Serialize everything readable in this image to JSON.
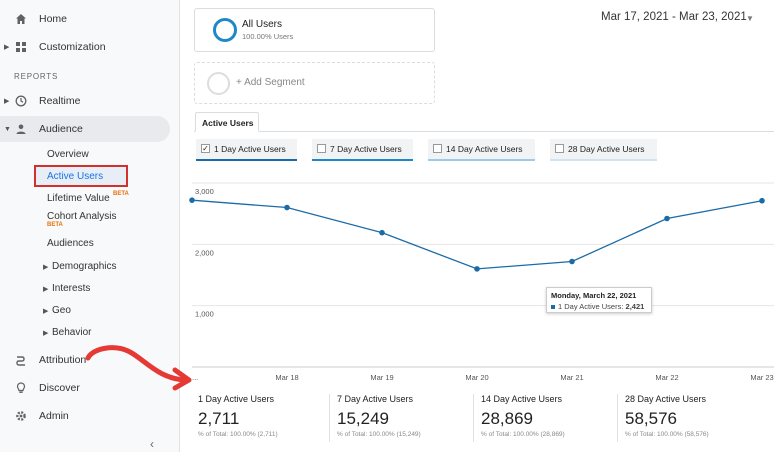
{
  "sidebar": {
    "home": "Home",
    "customization": "Customization",
    "reports_label": "REPORTS",
    "realtime": "Realtime",
    "audience": "Audience",
    "audience_items": {
      "overview": "Overview",
      "active_users": "Active Users",
      "lifetime_value": "Lifetime Value",
      "lifetime_beta": "BETA",
      "cohort_analysis": "Cohort Analysis",
      "cohort_beta": "BETA",
      "audiences": "Audiences",
      "demographics": "Demographics",
      "interests": "Interests",
      "geo": "Geo",
      "behavior": "Behavior"
    },
    "attribution": "Attribution",
    "discover": "Discover",
    "admin": "Admin",
    "collapse": "‹"
  },
  "segments": {
    "all_users": "All Users",
    "all_users_sub": "100.00% Users",
    "add_segment": "+ Add Segment"
  },
  "date_range": "Mar 17, 2021 - Mar 23, 2021",
  "tab": "Active Users",
  "toggles": [
    {
      "label": "1 Day Active Users",
      "checked": true,
      "color": "#1b6ba8"
    },
    {
      "label": "7 Day Active Users",
      "checked": false,
      "color": "#1e88c9"
    },
    {
      "label": "14 Day Active Users",
      "checked": false,
      "color": "#9ccbe8"
    },
    {
      "label": "28 Day Active Users",
      "checked": false,
      "color": "#cfe5f3"
    }
  ],
  "chart_data": {
    "type": "line",
    "x": [
      "...",
      "Mar 18",
      "Mar 19",
      "Mar 20",
      "Mar 21",
      "Mar 22",
      "Mar 23"
    ],
    "x_tick_labels": [
      "...",
      "Mar 18",
      "Mar 19",
      "Mar 20",
      "Mar 21",
      "Mar 22",
      "Mar 23"
    ],
    "y_ticks": [
      "3,000",
      "2,000",
      "1,000"
    ],
    "ylim": [
      0,
      3000
    ],
    "series": [
      {
        "name": "1 Day Active Users",
        "values": [
          2720,
          2600,
          2190,
          1600,
          1720,
          2421,
          2711
        ]
      }
    ],
    "grid": true,
    "color": "#1b6ba8"
  },
  "tooltip": {
    "date": "Monday, March 22, 2021",
    "label": "1 Day Active Users:",
    "value": "2,421"
  },
  "totals": [
    {
      "label": "1 Day Active Users",
      "value": "2,711",
      "sub": "% of Total: 100.00% (2,711)"
    },
    {
      "label": "7 Day Active Users",
      "value": "15,249",
      "sub": "% of Total: 100.00% (15,249)"
    },
    {
      "label": "14 Day Active Users",
      "value": "28,869",
      "sub": "% of Total: 100.00% (28,869)"
    },
    {
      "label": "28 Day Active Users",
      "value": "58,576",
      "sub": "% of Total: 100.00% (58,576)"
    }
  ],
  "colors": {
    "accent": "#1a73e8",
    "highlight_box": "#d32f2f",
    "line": "#1b6ba8"
  }
}
